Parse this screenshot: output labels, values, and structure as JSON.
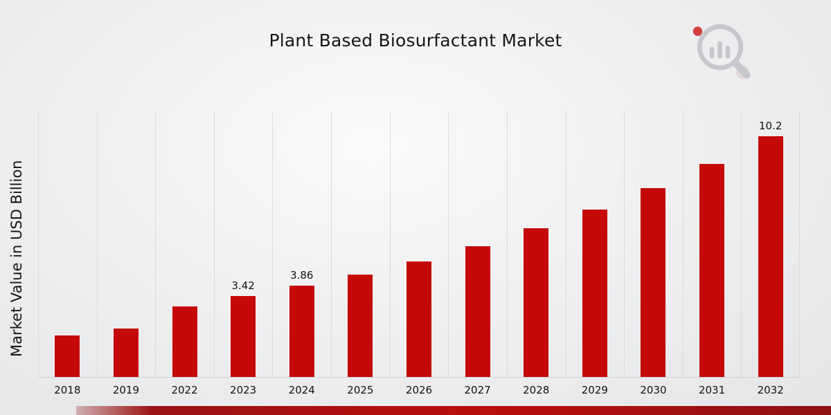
{
  "page": {
    "title": "Plant Based Biosurfactant Market",
    "y_axis_label": "Market Value in USD Billion"
  },
  "chart_data": {
    "type": "bar",
    "title": "Plant Based Biosurfactant Market",
    "xlabel": "",
    "ylabel": "Market Value in USD Billion",
    "categories": [
      "2018",
      "2019",
      "2022",
      "2023",
      "2024",
      "2025",
      "2026",
      "2027",
      "2028",
      "2029",
      "2030",
      "2031",
      "2032"
    ],
    "values": [
      1.75,
      2.05,
      3.0,
      3.42,
      3.86,
      4.35,
      4.9,
      5.55,
      6.3,
      7.1,
      8.0,
      9.05,
      10.2
    ],
    "data_labels": {
      "2023": "3.42",
      "2024": "3.86",
      "2032": "10.2"
    },
    "ylim": [
      0,
      11.3
    ],
    "grid": "vertical",
    "legend": "none",
    "bar_color": "#c50808",
    "accent_color": "#9c1313"
  },
  "branding": {
    "logo_name": "chart-magnifier-logo"
  }
}
